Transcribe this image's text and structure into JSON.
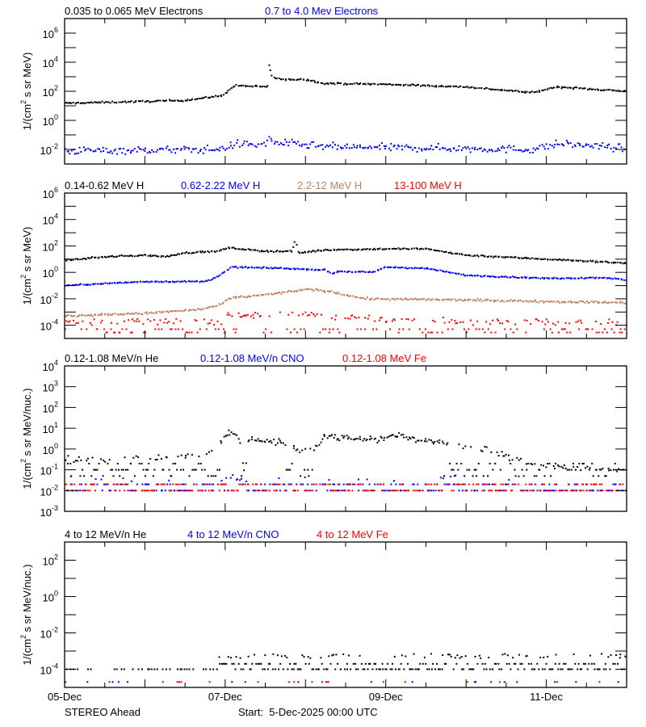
{
  "chart_data": [
    {
      "type": "scatter",
      "ylabel": {
        "prefix": "1/(cm",
        "sup": "2",
        "suffix": " s sr MeV)"
      },
      "yscale": "log",
      "ylim": [
        0.001,
        10000000
      ],
      "ytick_exponents": [
        6,
        4,
        2,
        0,
        -2
      ],
      "series": [
        {
          "name": "0.035 to 0.065 MeV Electrons",
          "color": "#000000",
          "points": [
            [
              "2025-12-05T00:00",
              15
            ],
            [
              "2025-12-06T00:00",
              20
            ],
            [
              "2025-12-06T12:00",
              24
            ],
            [
              "2025-12-06T20:00",
              40
            ],
            [
              "2025-12-06T23:00",
              50
            ],
            [
              "2025-12-07T03:00",
              250
            ],
            [
              "2025-12-07T12:00",
              200
            ],
            [
              "2025-12-07T13:00",
              220
            ],
            [
              "2025-12-07T13:10",
              7000
            ],
            [
              "2025-12-07T14:00",
              900
            ],
            [
              "2025-12-07T18:00",
              600
            ],
            [
              "2025-12-07T23:00",
              700
            ],
            [
              "2025-12-08T06:00",
              350
            ],
            [
              "2025-12-09T00:00",
              300
            ],
            [
              "2025-12-10T00:00",
              200
            ],
            [
              "2025-12-10T20:00",
              80
            ],
            [
              "2025-12-11T03:00",
              200
            ],
            [
              "2025-12-12T00:00",
              100
            ]
          ]
        },
        {
          "name": "0.7 to 4.0 Mev Electrons",
          "color": "#0000ff",
          "points": [
            [
              "2025-12-05T00:00",
              0.008
            ],
            [
              "2025-12-06T22:00",
              0.01
            ],
            [
              "2025-12-07T04:00",
              0.025
            ],
            [
              "2025-12-07T12:00",
              0.02
            ],
            [
              "2025-12-07T13:10",
              0.06
            ],
            [
              "2025-12-07T15:00",
              0.03
            ],
            [
              "2025-12-08T06:00",
              0.015
            ],
            [
              "2025-12-10T20:00",
              0.01
            ],
            [
              "2025-12-11T04:00",
              0.025
            ],
            [
              "2025-12-12T00:00",
              0.012
            ]
          ]
        }
      ]
    },
    {
      "type": "scatter",
      "ylabel": {
        "prefix": "1/(cm",
        "sup": "2",
        "suffix": " s sr MeV)"
      },
      "yscale": "log",
      "ylim": [
        1e-05,
        1000000
      ],
      "ytick_exponents": [
        6,
        4,
        2,
        0,
        -2,
        -4
      ],
      "series": [
        {
          "name": "0.14-0.62 MeV H",
          "color": "#000000",
          "points": [
            [
              "2025-12-05T00:00",
              8
            ],
            [
              "2025-12-05T12:00",
              15
            ],
            [
              "2025-12-06T00:00",
              20
            ],
            [
              "2025-12-06T06:00",
              15
            ],
            [
              "2025-12-06T12:00",
              30
            ],
            [
              "2025-12-06T22:00",
              40
            ],
            [
              "2025-12-07T01:00",
              70
            ],
            [
              "2025-12-07T12:00",
              40
            ],
            [
              "2025-12-07T20:00",
              40
            ],
            [
              "2025-12-07T21:00",
              300
            ],
            [
              "2025-12-07T22:00",
              30
            ],
            [
              "2025-12-08T06:00",
              50
            ],
            [
              "2025-12-09T00:00",
              60
            ],
            [
              "2025-12-09T12:00",
              60
            ],
            [
              "2025-12-10T00:00",
              20
            ],
            [
              "2025-12-11T00:00",
              10
            ],
            [
              "2025-12-12T00:00",
              5
            ]
          ]
        },
        {
          "name": "0.62-2.22 MeV H",
          "color": "#0000ff",
          "points": [
            [
              "2025-12-05T00:00",
              0.1
            ],
            [
              "2025-12-06T00:00",
              0.2
            ],
            [
              "2025-12-06T18:00",
              0.2
            ],
            [
              "2025-12-06T22:00",
              0.5
            ],
            [
              "2025-12-07T02:00",
              2.5
            ],
            [
              "2025-12-07T18:00",
              2
            ],
            [
              "2025-12-08T06:00",
              1.5
            ],
            [
              "2025-12-08T08:00",
              0.8
            ],
            [
              "2025-12-08T10:00",
              1.2
            ],
            [
              "2025-12-08T20:00",
              1
            ],
            [
              "2025-12-09T00:00",
              2.5
            ],
            [
              "2025-12-09T12:00",
              2
            ],
            [
              "2025-12-10T00:00",
              0.6
            ],
            [
              "2025-12-11T00:00",
              0.35
            ],
            [
              "2025-12-11T18:00",
              0.4
            ],
            [
              "2025-12-12T00:00",
              0.25
            ]
          ]
        },
        {
          "name": "2.2-12 MeV H",
          "color": "#c08060",
          "points": [
            [
              "2025-12-05T00:00",
              0.0005
            ],
            [
              "2025-12-06T00:00",
              0.0008
            ],
            [
              "2025-12-06T16:00",
              0.0015
            ],
            [
              "2025-12-06T22:00",
              0.003
            ],
            [
              "2025-12-07T02:00",
              0.012
            ],
            [
              "2025-12-07T12:00",
              0.02
            ],
            [
              "2025-12-08T00:00",
              0.05
            ],
            [
              "2025-12-08T06:00",
              0.04
            ],
            [
              "2025-12-08T12:00",
              0.02
            ],
            [
              "2025-12-08T18:00",
              0.01
            ],
            [
              "2025-12-10T00:00",
              0.008
            ],
            [
              "2025-12-12T00:00",
              0.005
            ]
          ]
        },
        {
          "name": "13-100 MeV H",
          "color": "#ff0000",
          "points": [
            [
              "2025-12-05T00:00",
              0.0002
            ],
            [
              "2025-12-07T00:00",
              0.0002
            ],
            [
              "2025-12-07T01:00",
              0.0006
            ],
            [
              "2025-12-08T06:00",
              0.0005
            ],
            [
              "2025-12-09T00:00",
              0.00025
            ],
            [
              "2025-12-12T00:00",
              0.00015
            ]
          ]
        }
      ]
    },
    {
      "type": "scatter",
      "ylabel": {
        "prefix": "1/(cm",
        "sup": "2",
        "suffix": " s sr MeV/nuc.)"
      },
      "yscale": "log",
      "ylim": [
        0.001,
        10000
      ],
      "ytick_exponents": [
        4,
        3,
        2,
        1,
        0,
        -1,
        -2,
        -3
      ],
      "series": [
        {
          "name": "0.12-1.08 MeV/n He",
          "color": "#000000",
          "points": [
            [
              "2025-12-05T00:00",
              0.3
            ],
            [
              "2025-12-06T00:00",
              0.35
            ],
            [
              "2025-12-06T18:00",
              0.5
            ],
            [
              "2025-12-06T22:00",
              1.5
            ],
            [
              "2025-12-07T01:00",
              6
            ],
            [
              "2025-12-07T04:00",
              5
            ],
            [
              "2025-12-07T06:00",
              0.05
            ],
            [
              "2025-12-07T07:00",
              3
            ],
            [
              "2025-12-07T18:00",
              2
            ],
            [
              "2025-12-07T22:00",
              0.8
            ],
            [
              "2025-12-08T04:00",
              1.5
            ],
            [
              "2025-12-08T05:00",
              4
            ],
            [
              "2025-12-09T00:00",
              3
            ],
            [
              "2025-12-09T02:00",
              5
            ],
            [
              "2025-12-09T12:00",
              2.5
            ],
            [
              "2025-12-10T06:00",
              1
            ],
            [
              "2025-12-10T18:00",
              0.2
            ],
            [
              "2025-12-12T00:00",
              0.08
            ]
          ]
        },
        {
          "name": "0.12-1.08 MeV/n CNO",
          "color": "#0000ff",
          "points": [
            [
              "2025-12-05T00:00",
              0.01
            ],
            [
              "2025-12-12T00:00",
              0.01
            ]
          ]
        },
        {
          "name": "0.12-1.08 MeV Fe",
          "color": "#ff0000",
          "points": [
            [
              "2025-12-05T00:00",
              0.01
            ],
            [
              "2025-12-12T00:00",
              0.01
            ]
          ]
        }
      ]
    },
    {
      "type": "scatter",
      "ylabel": {
        "prefix": "1/(cm",
        "sup": "2",
        "suffix": " s sr MeV/nuc.)"
      },
      "yscale": "log",
      "ylim": [
        1e-05,
        1000
      ],
      "ytick_exponents": [
        2,
        0,
        -2,
        -4
      ],
      "series": [
        {
          "name": "4 to 12 MeV/n He",
          "color": "#000000",
          "points": [
            [
              "2025-12-05T00:00",
              0.0001
            ],
            [
              "2025-12-12T00:00",
              0.0001
            ]
          ]
        },
        {
          "name": "4 to 12 MeV/n CNO",
          "color": "#0000ff",
          "points": [
            [
              "2025-12-05T00:00",
              2e-05
            ],
            [
              "2025-12-12T00:00",
              2e-05
            ]
          ]
        },
        {
          "name": "4 to 12 MeV Fe",
          "color": "#ff0000",
          "points": [
            [
              "2025-12-05T00:00",
              2e-05
            ],
            [
              "2025-12-12T00:00",
              2e-05
            ]
          ]
        }
      ]
    }
  ],
  "xaxis": {
    "range": [
      "2025-12-05T00:00",
      "2025-12-12T00:00"
    ],
    "tick_labels": [
      "05-Dec",
      "07-Dec",
      "09-Dec",
      "11-Dec"
    ]
  },
  "footer": {
    "spacecraft": "STEREO Ahead",
    "start": "Start:  5-Dec-2025 00:00 UTC"
  }
}
